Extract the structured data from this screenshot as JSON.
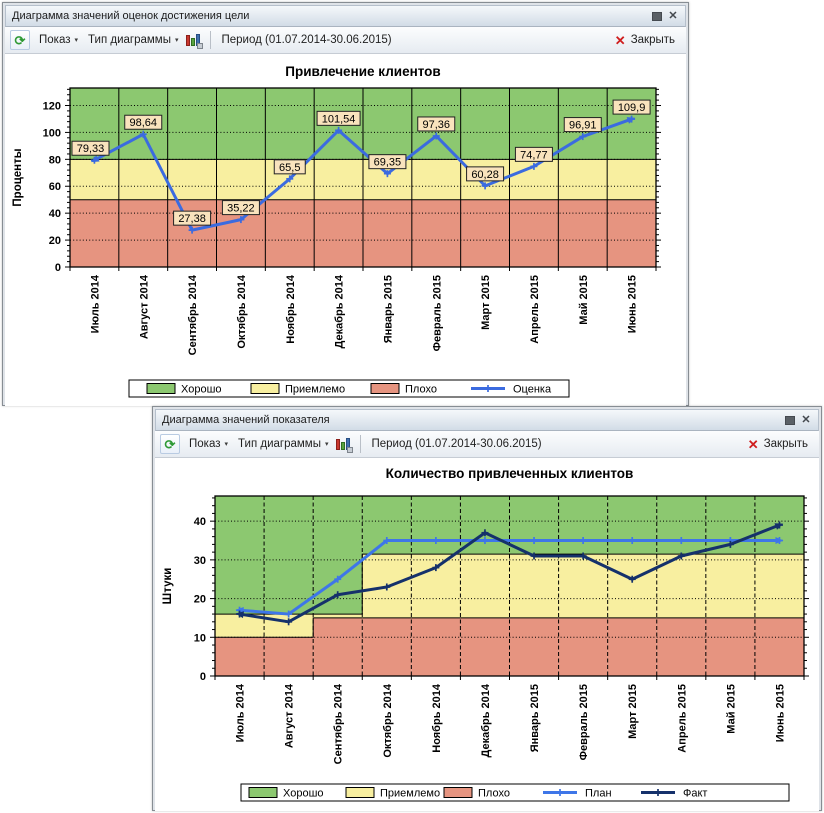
{
  "icons": {
    "refresh": "⟳",
    "dropdown": "▾",
    "close_x": "✕",
    "toolbar_close_x": "✕"
  },
  "windows": [
    {
      "title": "Диаграмма значений оценок достижения цели",
      "toolbar": {
        "show": "Показ",
        "chart_type": "Тип диаграммы",
        "period": "Период (01.07.2014-30.06.2015)",
        "close": "Закрыть"
      }
    },
    {
      "title": "Диаграмма значений показателя",
      "toolbar": {
        "show": "Показ",
        "chart_type": "Тип диаграммы",
        "period": "Период (01.07.2014-30.06.2015)",
        "close": "Закрыть"
      }
    }
  ],
  "chart_data": [
    {
      "type": "line",
      "title": "Привлечение клиентов",
      "ylabel": "Проценты",
      "ylim": [
        0,
        130
      ],
      "yticks": [
        0,
        20,
        40,
        60,
        80,
        100,
        120
      ],
      "grid": "horizontal dotted, vertical solid",
      "legend_position": "bottom",
      "categories": [
        "Июль 2014",
        "Август 2014",
        "Сентябрь 2014",
        "Октябрь 2014",
        "Ноябрь 2014",
        "Декабрь 2014",
        "Январь 2015",
        "Февраль 2015",
        "Март 2015",
        "Апрель 2015",
        "Май 2015",
        "Июнь 2015"
      ],
      "series": [
        {
          "name": "Оценка",
          "color": "#3b6be0",
          "values": [
            79.33,
            98.64,
            27.38,
            35.22,
            65.5,
            101.54,
            69.35,
            97.36,
            60.28,
            74.77,
            96.91,
            109.9
          ],
          "point_labels": [
            "79,33",
            "98,64",
            "27,38",
            "35,22",
            "65,5",
            "101,54",
            "69,35",
            "97,36",
            "60,28",
            "74,77",
            "96,91",
            "109,9"
          ]
        }
      ],
      "zones": {
        "labels": [
          "Хорошо",
          "Приемлемо",
          "Плохо"
        ],
        "colors": [
          "#8cc870",
          "#f8efa0",
          "#e69480"
        ],
        "red_top": [
          50,
          50,
          50,
          50,
          50,
          50,
          50,
          50,
          50,
          50,
          50,
          50
        ],
        "yellow_top": [
          80,
          80,
          80,
          80,
          80,
          80,
          80,
          80,
          80,
          80,
          80,
          80
        ]
      },
      "label_box": {
        "fill": "#f9e3bd",
        "border": "#222222"
      }
    },
    {
      "type": "line",
      "title": "Количество привлеченных клиентов",
      "ylabel": "Штуки",
      "ylim": [
        0,
        46
      ],
      "yticks": [
        0,
        10,
        20,
        30,
        40
      ],
      "grid": "horizontal dotted, vertical dashed",
      "legend_position": "bottom",
      "categories": [
        "Июль 2014",
        "Август 2014",
        "Сентябрь 2014",
        "Октябрь 2014",
        "Ноябрь 2014",
        "Декабрь 2014",
        "Январь 2015",
        "Февраль 2015",
        "Март 2015",
        "Апрель 2015",
        "Май 2015",
        "Июнь 2015"
      ],
      "series": [
        {
          "name": "План",
          "color": "#3e76e8",
          "values": [
            17,
            16,
            25,
            35,
            35,
            35,
            35,
            35,
            35,
            35,
            35,
            35
          ]
        },
        {
          "name": "Факт",
          "color": "#15316b",
          "values": [
            16,
            14,
            21,
            23,
            28,
            37,
            31,
            31,
            25,
            31,
            34,
            39
          ]
        }
      ],
      "zones": {
        "labels": [
          "Хорошо",
          "Приемлемо",
          "Плохо"
        ],
        "colors": [
          "#8cc870",
          "#f8efa0",
          "#e69480"
        ],
        "red_top": [
          10,
          10,
          15,
          15,
          15,
          15,
          15,
          15,
          15,
          15,
          15,
          15
        ],
        "yellow_top": [
          16,
          16,
          16,
          31.5,
          31.5,
          31.5,
          31.5,
          31.5,
          31.5,
          31.5,
          31.5,
          31.5
        ]
      }
    }
  ]
}
